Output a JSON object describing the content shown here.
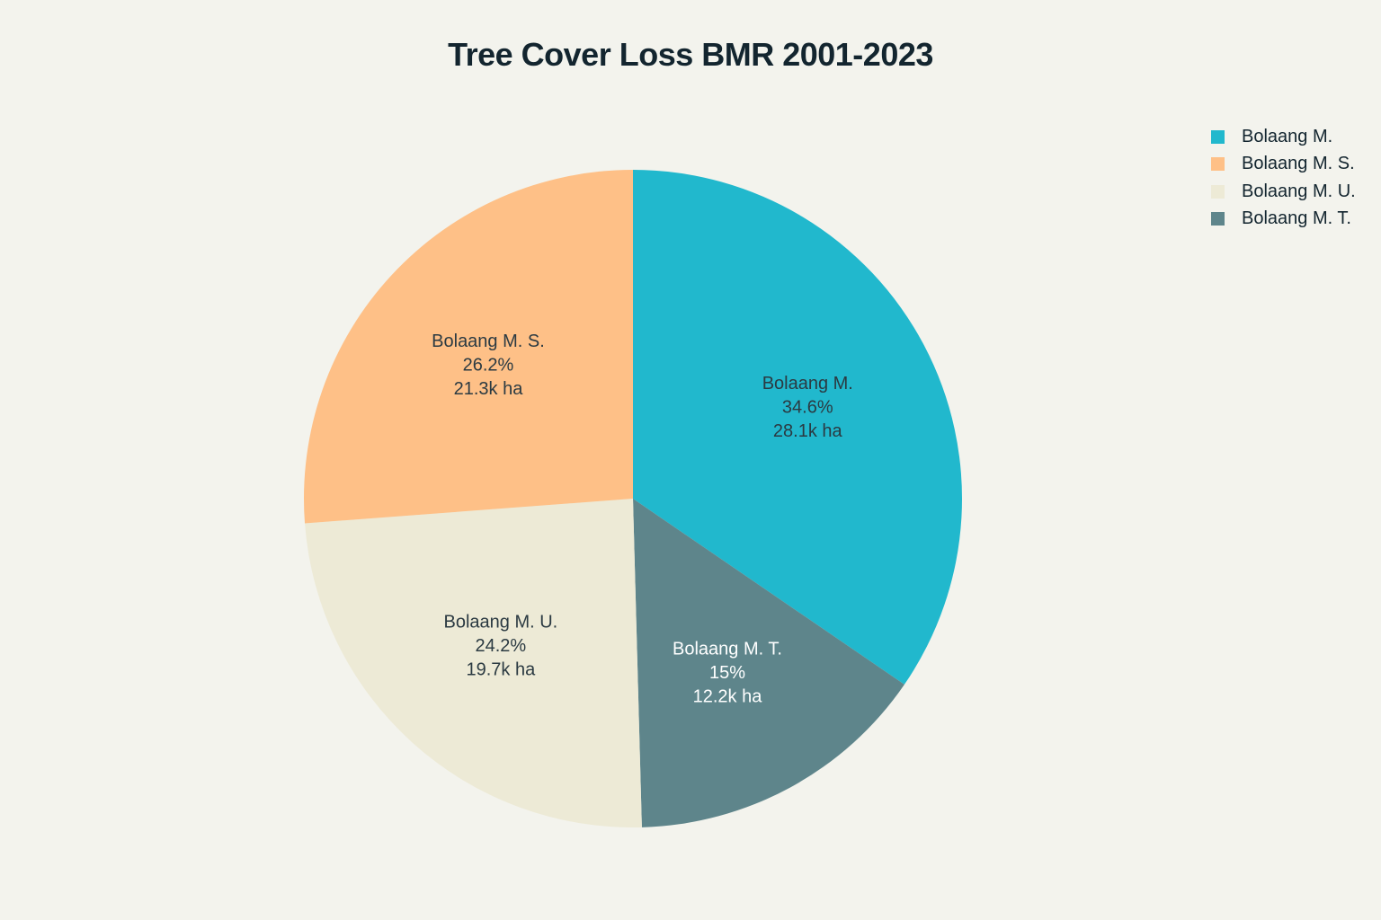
{
  "chart_data": {
    "type": "pie",
    "title": "Tree Cover Loss BMR 2001-2023",
    "unit": "ha",
    "slices": [
      {
        "name": "Bolaang M.",
        "percent": "34.6%",
        "amount": "28.1k ha",
        "value": 28.1,
        "color": "#21b8cd",
        "text_color": "#2b3a42"
      },
      {
        "name": "Bolaang M. T.",
        "percent": "15%",
        "amount": "12.2k ha",
        "value": 12.2,
        "color": "#5e858b",
        "text_color": "#ffffff"
      },
      {
        "name": "Bolaang M. U.",
        "percent": "24.2%",
        "amount": "19.7k ha",
        "value": 19.7,
        "color": "#edead6",
        "text_color": "#2b3a42"
      },
      {
        "name": "Bolaang M. S.",
        "percent": "26.2%",
        "amount": "21.3k ha",
        "value": 21.3,
        "color": "#fec087",
        "text_color": "#2b3a42"
      }
    ],
    "legend": {
      "placement": "top-right",
      "entries": [
        {
          "name": "Bolaang M.",
          "color": "#21b8cd"
        },
        {
          "name": "Bolaang M. S.",
          "color": "#fec087"
        },
        {
          "name": "Bolaang M. U.",
          "color": "#edead6"
        },
        {
          "name": "Bolaang M. T.",
          "color": "#5e858b"
        }
      ]
    }
  }
}
